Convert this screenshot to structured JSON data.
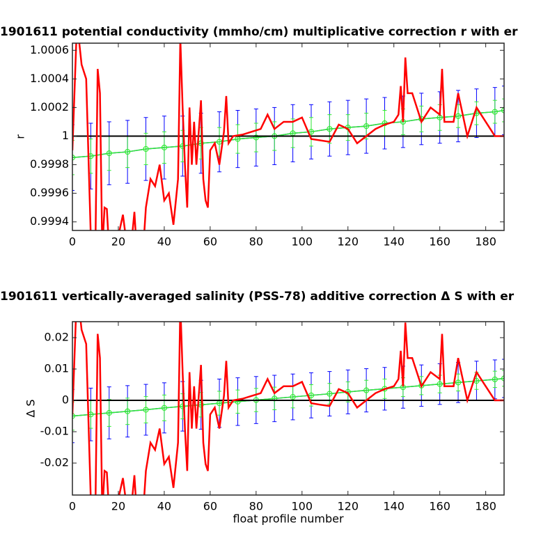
{
  "chart_data": [
    {
      "type": "line",
      "title": "1901611 potential conductivity (mmho/cm) multiplicative correction r with er",
      "ylabel": "r",
      "xlim": [
        0,
        188
      ],
      "xticks": [
        0,
        20,
        40,
        60,
        80,
        100,
        120,
        140,
        160,
        180
      ],
      "ylim": [
        0.99934,
        1.00065
      ],
      "yticks": [
        0.9994,
        0.9996,
        0.9998,
        1,
        1.0002,
        1.0004,
        1.0006
      ],
      "reference": 1,
      "reference_color": "#000000",
      "series": [
        {
          "color": "#0000ff",
          "x": [
            0,
            8,
            16,
            24,
            32,
            40,
            48,
            56,
            64,
            72,
            80,
            88,
            96,
            104,
            112,
            120,
            128,
            136,
            144,
            152,
            160,
            168,
            176,
            184,
            188
          ],
          "values": [
            0.99985,
            0.99986,
            0.99988,
            0.99989,
            0.99991,
            0.99992,
            0.99993,
            0.99995,
            0.99996,
            0.99998,
            0.99999,
            1,
            1.00002,
            1.00003,
            1.00005,
            1.00006,
            1.00007,
            1.00009,
            1.0001,
            1.00012,
            1.00013,
            1.00014,
            1.00016,
            1.00017,
            1.00018
          ],
          "errors": [
            0.00023,
            0.00023,
            0.00022,
            0.00022,
            0.00022,
            0.00022,
            0.00021,
            0.00021,
            0.00021,
            0.0002,
            0.0002,
            0.0002,
            0.0002,
            0.00019,
            0.00019,
            0.00019,
            0.00019,
            0.00018,
            0.00018,
            0.00018,
            0.00018,
            0.00018,
            0.00017,
            0.00017,
            0.00017
          ]
        },
        {
          "color": "#33ee33",
          "marker": "circle",
          "x": [
            0,
            8,
            16,
            24,
            32,
            40,
            48,
            56,
            64,
            72,
            80,
            88,
            96,
            104,
            112,
            120,
            128,
            136,
            144,
            152,
            160,
            168,
            176,
            184,
            188
          ],
          "values": [
            0.99985,
            0.99986,
            0.99988,
            0.99989,
            0.99991,
            0.99992,
            0.99993,
            0.99995,
            0.99996,
            0.99998,
            0.99999,
            1,
            1.00002,
            1.00003,
            1.00005,
            1.00006,
            1.00007,
            1.00009,
            1.0001,
            1.00012,
            1.00013,
            1.00014,
            1.00016,
            1.00017,
            1.00018
          ],
          "errors": [
            0.00012,
            0.00012,
            0.00012,
            0.00011,
            0.00011,
            0.00011,
            0.00011,
            0.00011,
            0.0001,
            0.0001,
            0.0001,
            0.0001,
            0.0001,
            0.0001,
            0.0001,
            9e-05,
            9e-05,
            9e-05,
            9e-05,
            9e-05,
            9e-05,
            8e-05,
            8e-05,
            8e-05,
            8e-05
          ]
        },
        {
          "color": "#ff0000",
          "x": [
            0,
            2,
            4,
            6,
            8,
            9,
            10,
            11,
            12,
            13,
            14,
            15,
            16,
            18,
            20,
            22,
            24,
            26,
            27,
            28,
            30,
            32,
            34,
            36,
            38,
            40,
            42,
            44,
            46,
            47,
            48,
            49,
            50,
            51,
            52,
            53,
            54,
            56,
            57,
            58,
            59,
            60,
            62,
            64,
            66,
            67,
            68,
            70,
            74,
            78,
            82,
            85,
            88,
            92,
            96,
            100,
            104,
            108,
            112,
            116,
            120,
            124,
            128,
            132,
            136,
            140,
            142,
            143,
            144,
            145,
            146,
            148,
            152,
            156,
            160,
            161,
            162,
            166,
            168,
            172,
            176,
            180,
            184,
            188
          ],
          "values": [
            0.9999,
            1.0008,
            1.0005,
            1.0004,
            0.9993,
            0.999,
            0.9992,
            1.00047,
            1.0003,
            0.9992,
            0.9995,
            0.99949,
            0.9992,
            0.9992,
            0.9993,
            0.99945,
            0.9992,
            0.9993,
            0.99947,
            0.9992,
            0.999,
            0.9995,
            0.9997,
            0.99965,
            0.9998,
            0.99955,
            0.9996,
            0.99938,
            0.9997,
            1.00068,
            1.0002,
            0.9998,
            0.9995,
            1.0002,
            0.9998,
            1.0001,
            0.9998,
            1.00025,
            0.9997,
            0.99955,
            0.9995,
            0.9999,
            0.99995,
            0.9998,
            1.00003,
            1.00028,
            0.99995,
            1,
            1.00001,
            1.00003,
            1.00005,
            1.00015,
            1.00005,
            1.0001,
            1.0001,
            1.00013,
            0.99998,
            0.99997,
            0.99996,
            1.00008,
            1.00005,
            0.99995,
            1,
            1.00005,
            1.00008,
            1.0001,
            1.00015,
            1.00035,
            1.0001,
            1.00055,
            1.0003,
            1.0003,
            1.0001,
            1.0002,
            1.00015,
            1.00047,
            1.0001,
            1.0001,
            1.0003,
            1,
            1.0002,
            1.0001,
            1,
            1
          ]
        }
      ]
    },
    {
      "type": "line",
      "title": "1901611 vertically-averaged salinity (PSS-78) additive correction Δ S with er",
      "ylabel": "Δ S",
      "xlabel": "float profile number",
      "xlim": [
        0,
        188
      ],
      "xticks": [
        0,
        20,
        40,
        60,
        80,
        100,
        120,
        140,
        160,
        180
      ],
      "ylim": [
        -0.0302,
        0.0251
      ],
      "yticks": [
        -0.02,
        -0.01,
        0,
        0.01,
        0.02
      ],
      "reference": 0,
      "reference_color": "#000000",
      "series": [
        {
          "color": "#0000ff",
          "x": [
            0,
            8,
            16,
            24,
            32,
            40,
            48,
            56,
            64,
            72,
            80,
            88,
            96,
            104,
            112,
            120,
            128,
            136,
            144,
            152,
            160,
            168,
            176,
            184,
            188
          ],
          "values": [
            -0.005,
            -0.0045,
            -0.004,
            -0.0035,
            -0.003,
            -0.0024,
            -0.0019,
            -0.0014,
            -0.0009,
            -0.0004,
            0.0001,
            0.0006,
            0.0011,
            0.0016,
            0.0021,
            0.0027,
            0.0032,
            0.0037,
            0.0042,
            0.0047,
            0.0052,
            0.0057,
            0.0062,
            0.0067,
            0.007
          ],
          "errors": [
            0.0085,
            0.0084,
            0.0083,
            0.0082,
            0.0081,
            0.008,
            0.0079,
            0.0078,
            0.0077,
            0.0076,
            0.0075,
            0.0074,
            0.0073,
            0.0072,
            0.0071,
            0.007,
            0.0069,
            0.0068,
            0.0067,
            0.0066,
            0.0065,
            0.0064,
            0.0063,
            0.0062,
            0.0061
          ]
        },
        {
          "color": "#33ee33",
          "marker": "circle",
          "x": [
            0,
            8,
            16,
            24,
            32,
            40,
            48,
            56,
            64,
            72,
            80,
            88,
            96,
            104,
            112,
            120,
            128,
            136,
            144,
            152,
            160,
            168,
            176,
            184,
            188
          ],
          "values": [
            -0.005,
            -0.0045,
            -0.004,
            -0.0035,
            -0.003,
            -0.0024,
            -0.0019,
            -0.0014,
            -0.0009,
            -0.0004,
            0.0001,
            0.0006,
            0.0011,
            0.0016,
            0.0021,
            0.0027,
            0.0032,
            0.0037,
            0.0042,
            0.0047,
            0.0052,
            0.0057,
            0.0062,
            0.0067,
            0.007
          ],
          "errors": [
            0.0045,
            0.0044,
            0.0043,
            0.0042,
            0.0042,
            0.0041,
            0.004,
            0.0039,
            0.0038,
            0.0037,
            0.0037,
            0.0036,
            0.0035,
            0.0034,
            0.0033,
            0.0032,
            0.0032,
            0.0031,
            0.003,
            0.0029,
            0.0028,
            0.0027,
            0.0027,
            0.0026,
            0.0025
          ]
        },
        {
          "color": "#ff0000",
          "x": [
            0,
            2,
            4,
            6,
            8,
            9,
            10,
            11,
            12,
            13,
            14,
            15,
            16,
            18,
            20,
            22,
            24,
            26,
            27,
            28,
            30,
            32,
            34,
            36,
            38,
            40,
            42,
            44,
            46,
            47,
            48,
            49,
            50,
            51,
            52,
            53,
            54,
            56,
            57,
            58,
            59,
            60,
            62,
            64,
            66,
            67,
            68,
            70,
            74,
            78,
            82,
            85,
            88,
            92,
            96,
            100,
            104,
            108,
            112,
            116,
            120,
            124,
            128,
            132,
            136,
            140,
            142,
            143,
            144,
            145,
            146,
            148,
            152,
            156,
            160,
            161,
            162,
            166,
            168,
            172,
            176,
            180,
            184,
            188
          ],
          "values": [
            -0.0045,
            0.036,
            0.0225,
            0.018,
            -0.0315,
            -0.045,
            -0.036,
            0.0212,
            0.0135,
            -0.036,
            -0.0225,
            -0.023,
            -0.036,
            -0.036,
            -0.0315,
            -0.0248,
            -0.036,
            -0.0315,
            -0.0239,
            -0.036,
            -0.045,
            -0.0225,
            -0.0135,
            -0.0158,
            -0.009,
            -0.0203,
            -0.018,
            -0.0279,
            -0.0135,
            0.0306,
            0.009,
            -0.009,
            -0.0225,
            0.009,
            -0.009,
            0.0045,
            -0.009,
            0.0113,
            -0.0135,
            -0.0203,
            -0.0225,
            -0.0045,
            -0.0023,
            -0.009,
            0.0014,
            0.0126,
            -0.0023,
            0,
            0.0005,
            0.0014,
            0.0023,
            0.0068,
            0.0023,
            0.0045,
            0.0045,
            0.0059,
            -0.0009,
            -0.0014,
            -0.0018,
            0.0036,
            0.0023,
            -0.0023,
            0,
            0.0023,
            0.0036,
            0.0045,
            0.0068,
            0.0158,
            0.0045,
            0.0248,
            0.0135,
            0.0135,
            0.0045,
            0.009,
            0.0068,
            0.0212,
            0.0045,
            0.0045,
            0.0135,
            0,
            0.009,
            0.0045,
            0,
            0
          ]
        }
      ]
    }
  ]
}
